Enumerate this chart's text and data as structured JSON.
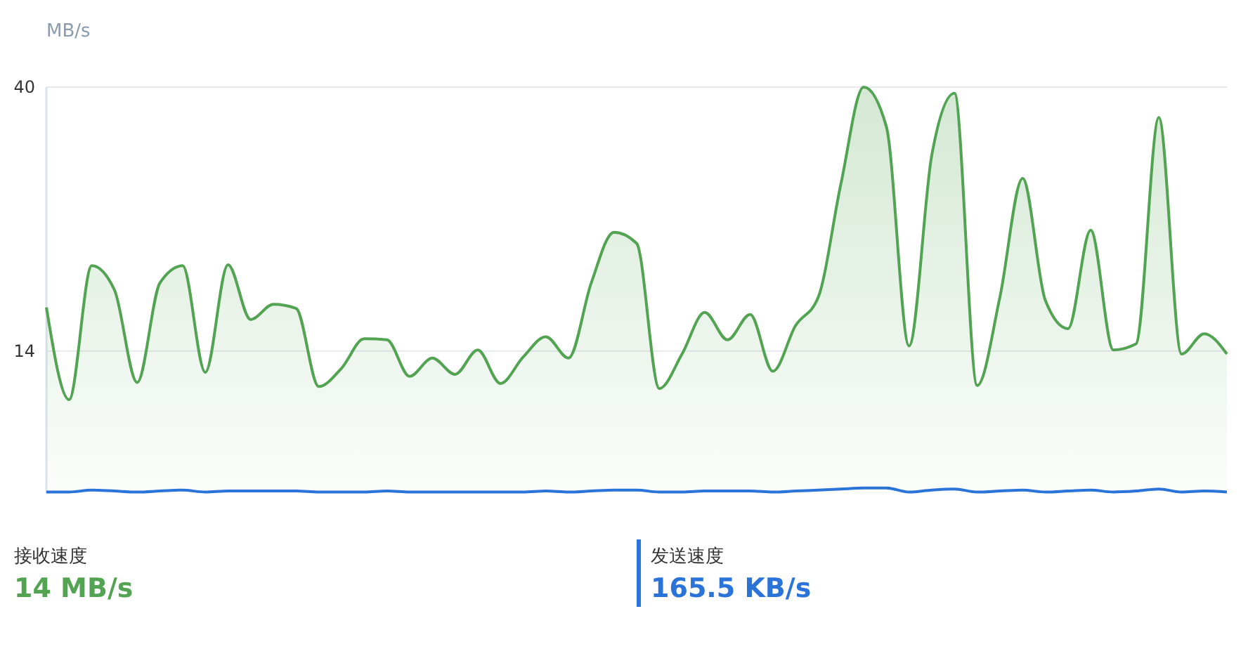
{
  "chart_data": {
    "type": "area",
    "ylabel": "MB/s",
    "ylim": [
      0,
      40
    ],
    "yticks": [
      14,
      40
    ],
    "grid": "y",
    "legend": "bottom",
    "marker": "none",
    "categories": [
      null,
      null,
      null,
      null,
      null,
      null,
      null,
      null,
      null,
      null,
      null,
      null,
      null,
      null,
      null,
      null,
      null,
      null,
      null,
      null,
      null,
      null,
      null,
      null,
      null,
      null,
      null,
      null,
      null,
      null,
      null,
      null,
      null,
      null,
      null,
      null,
      null,
      null,
      null,
      null,
      null,
      null,
      null,
      null,
      null,
      null,
      null,
      null,
      null,
      null,
      null,
      null,
      null
    ],
    "series": [
      {
        "name": "接收速度",
        "color": "#52a352",
        "values": [
          18.3,
          9.2,
          22.4,
          20,
          10.9,
          20.7,
          22.4,
          11.9,
          22.5,
          17.1,
          18.6,
          18.2,
          10.5,
          12.3,
          15.2,
          15.1,
          11.5,
          13.3,
          11.7,
          14.1,
          10.8,
          13.4,
          15.4,
          13.3,
          20.7,
          25.7,
          24.6,
          10.3,
          13.7,
          17.8,
          15.1,
          17.6,
          12,
          16.5,
          19.3,
          30.5,
          40,
          36.1,
          14.5,
          33.3,
          39.4,
          10.6,
          19.3,
          31,
          19,
          16.2,
          25.9,
          14.1,
          14.7,
          37,
          13.7,
          15.7,
          13.7
        ]
      },
      {
        "name": "发送速度",
        "color": "#2a73d9",
        "type": "line",
        "values": [
          0.1,
          0.1,
          0.3,
          0.2,
          0.1,
          0.2,
          0.3,
          0.1,
          0.2,
          0.2,
          0.2,
          0.2,
          0.1,
          0.1,
          0.1,
          0.2,
          0.1,
          0.1,
          0.1,
          0.1,
          0.1,
          0.1,
          0.2,
          0.1,
          0.2,
          0.3,
          0.3,
          0.1,
          0.1,
          0.2,
          0.2,
          0.2,
          0.1,
          0.2,
          0.3,
          0.4,
          0.5,
          0.5,
          0.1,
          0.3,
          0.4,
          0.1,
          0.2,
          0.3,
          0.1,
          0.2,
          0.3,
          0.1,
          0.2,
          0.4,
          0.1,
          0.2,
          0.1
        ]
      }
    ],
    "annotations": [
      "14 MB/s",
      "165.5 KB/s"
    ]
  }
}
